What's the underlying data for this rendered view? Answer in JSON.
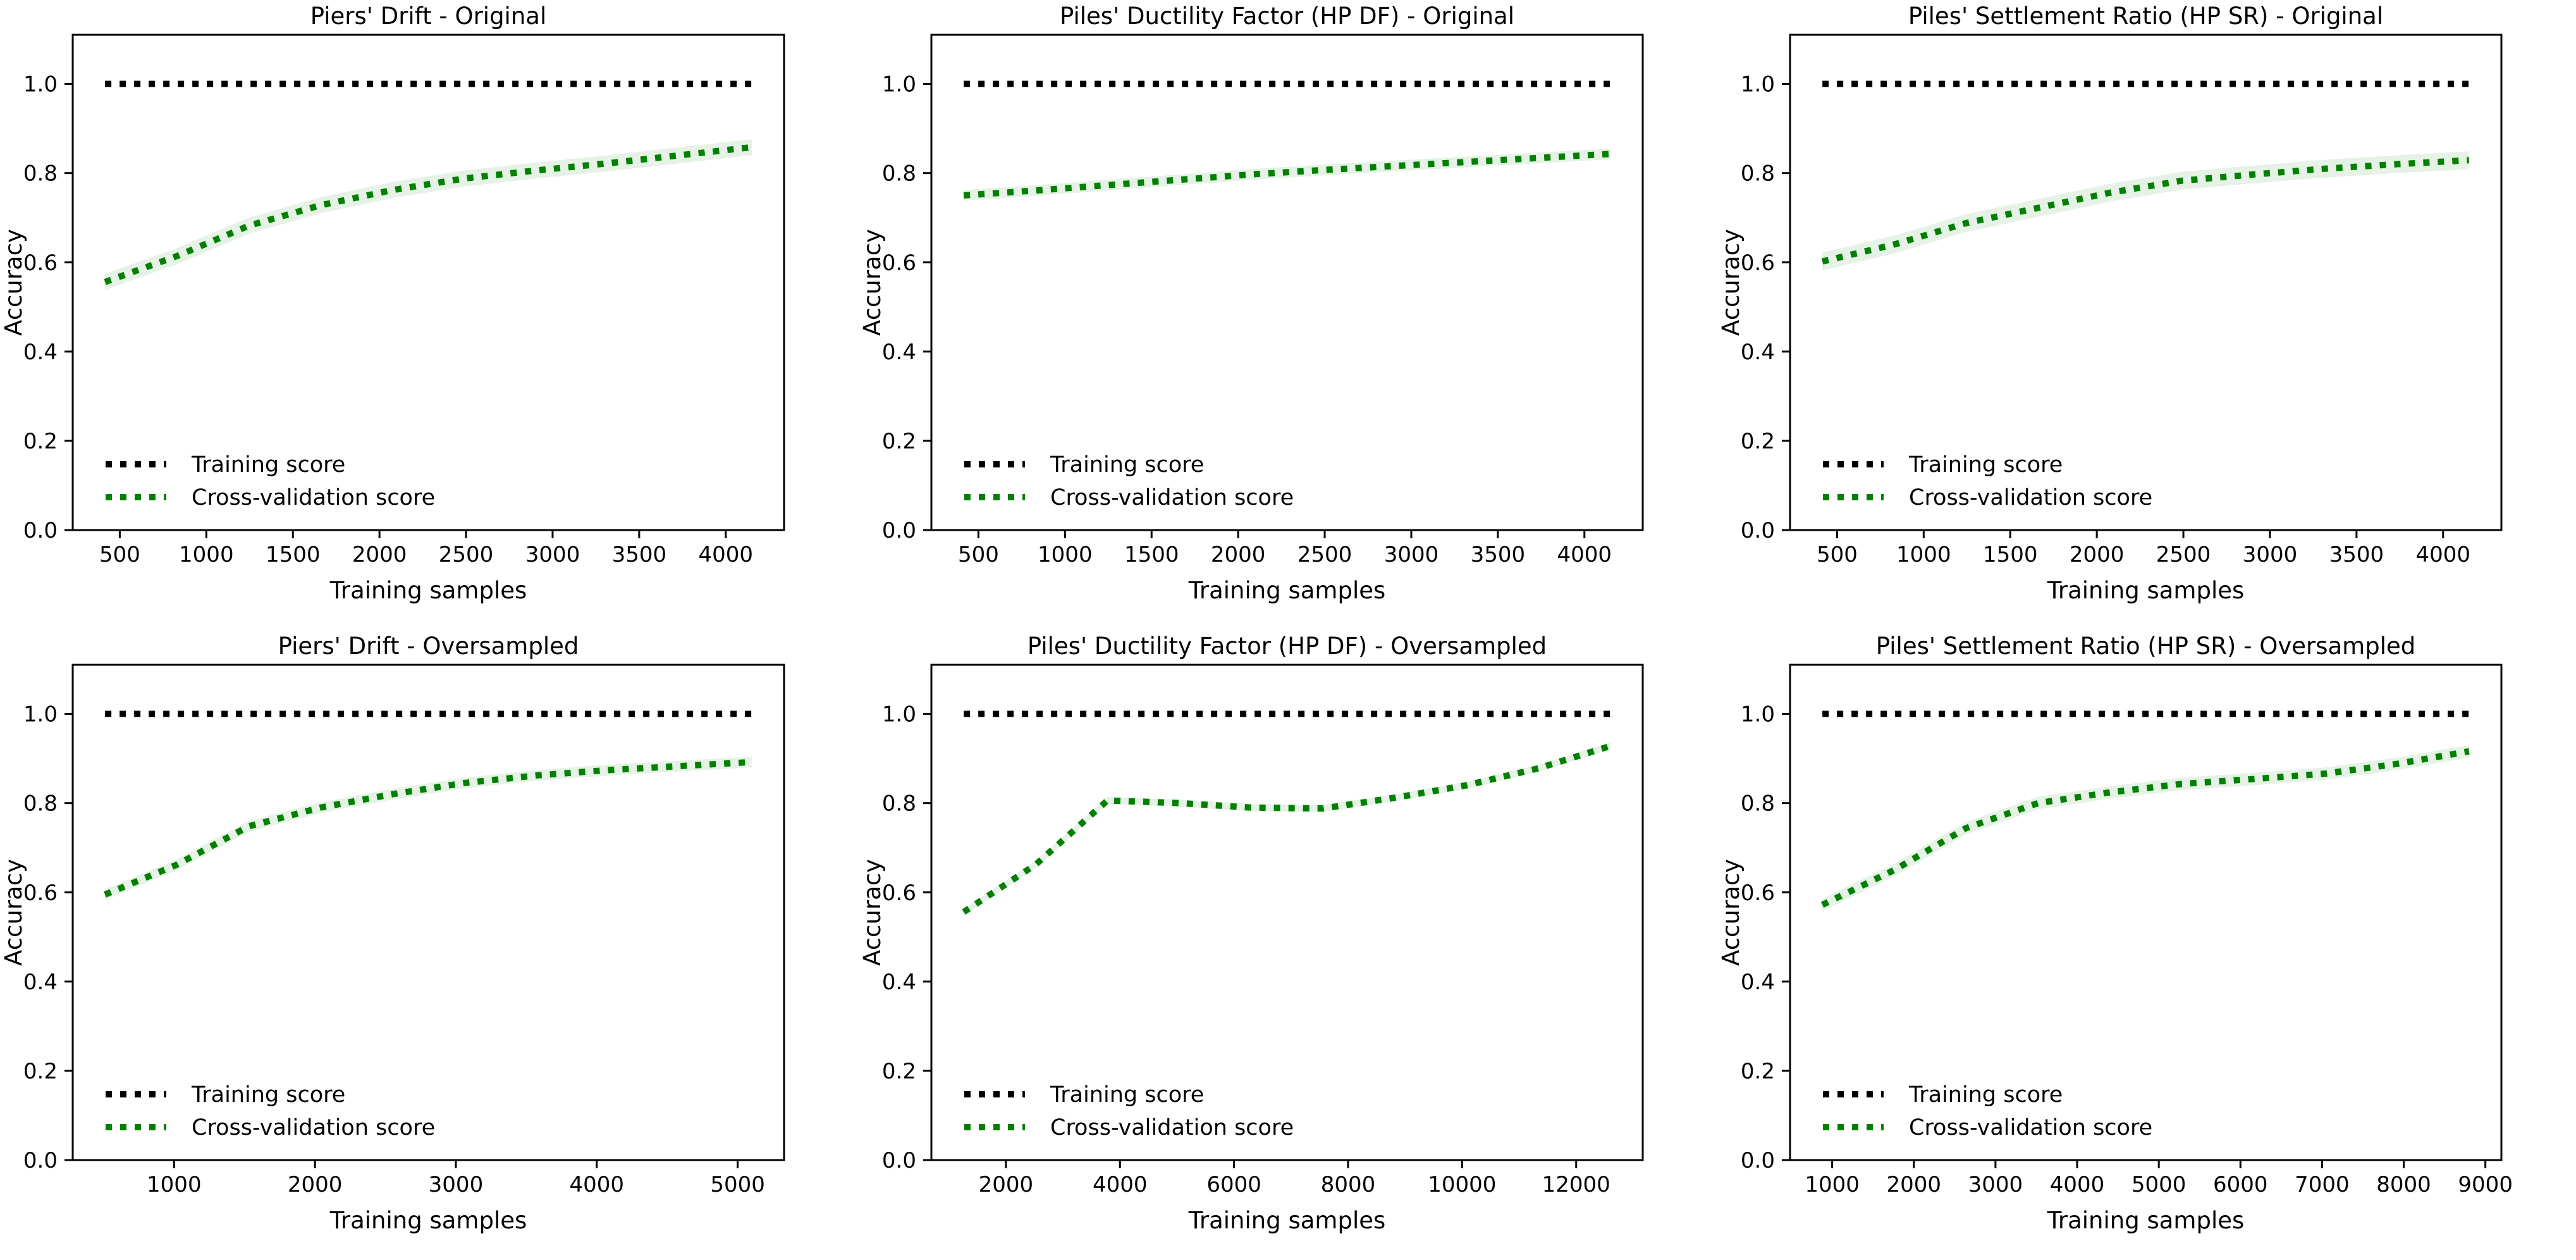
{
  "page": {
    "background": "#ffffff"
  },
  "chart_data": [
    {
      "id": "piers-drift-original",
      "type": "line",
      "title": "Piers' Drift - Original",
      "xlabel": "Training samples",
      "ylabel": "Accuracy",
      "ylim": [
        0,
        1.11
      ],
      "grid": false,
      "legend_position": "lower-left",
      "yticks": [
        "0.0",
        "0.2",
        "0.4",
        "0.6",
        "0.8",
        "1.0"
      ],
      "xticks": [
        "500",
        "1000",
        "1500",
        "2000",
        "2500",
        "3000",
        "3500",
        "4000"
      ],
      "series": [
        {
          "name": "Training score",
          "color": "#000000",
          "style": "dotted",
          "band": 0,
          "x": [
            415,
            830,
            1245,
            1660,
            2075,
            2490,
            2905,
            3320,
            3735,
            4150
          ],
          "y": [
            1.0,
            1.0,
            1.0,
            1.0,
            1.0,
            1.0,
            1.0,
            1.0,
            1.0,
            1.0
          ]
        },
        {
          "name": "Cross-validation score",
          "color": "#008000",
          "style": "dotted",
          "band": 0.018,
          "x": [
            415,
            830,
            1245,
            1660,
            2075,
            2490,
            2905,
            3320,
            3735,
            4150
          ],
          "y": [
            0.556,
            0.614,
            0.682,
            0.728,
            0.762,
            0.788,
            0.806,
            0.822,
            0.84,
            0.858
          ]
        }
      ]
    },
    {
      "id": "piles-ductility-factor-original",
      "type": "line",
      "title": "Piles' Ductility Factor (HP DF) - Original",
      "xlabel": "Training samples",
      "ylabel": "Accuracy",
      "ylim": [
        0,
        1.11
      ],
      "grid": false,
      "legend_position": "lower-left",
      "yticks": [
        "0.0",
        "0.2",
        "0.4",
        "0.6",
        "0.8",
        "1.0"
      ],
      "xticks": [
        "500",
        "1000",
        "1500",
        "2000",
        "2500",
        "3000",
        "3500",
        "4000"
      ],
      "series": [
        {
          "name": "Training score",
          "color": "#000000",
          "style": "dotted",
          "band": 0,
          "x": [
            415,
            830,
            1245,
            1660,
            2075,
            2490,
            2905,
            3320,
            3735,
            4150
          ],
          "y": [
            1.0,
            1.0,
            1.0,
            1.0,
            1.0,
            1.0,
            1.0,
            1.0,
            1.0,
            1.0
          ]
        },
        {
          "name": "Cross-validation score",
          "color": "#008000",
          "style": "dotted",
          "band": 0.012,
          "x": [
            415,
            830,
            1245,
            1660,
            2075,
            2490,
            2905,
            3320,
            3735,
            4150
          ],
          "y": [
            0.75,
            0.761,
            0.773,
            0.785,
            0.797,
            0.807,
            0.816,
            0.825,
            0.834,
            0.843
          ]
        }
      ]
    },
    {
      "id": "piles-settlement-ratio-original",
      "type": "line",
      "title": "Piles' Settlement Ratio (HP SR) - Original",
      "xlabel": "Training samples",
      "ylabel": "Accuracy",
      "ylim": [
        0,
        1.11
      ],
      "grid": false,
      "legend_position": "lower-left",
      "yticks": [
        "0.0",
        "0.2",
        "0.4",
        "0.6",
        "0.8",
        "1.0"
      ],
      "xticks": [
        "500",
        "1000",
        "1500",
        "2000",
        "2500",
        "3000",
        "3500",
        "4000"
      ],
      "series": [
        {
          "name": "Training score",
          "color": "#000000",
          "style": "dotted",
          "band": 0,
          "x": [
            415,
            830,
            1245,
            1660,
            2075,
            2490,
            2905,
            3320,
            3735,
            4150
          ],
          "y": [
            1.0,
            1.0,
            1.0,
            1.0,
            1.0,
            1.0,
            1.0,
            1.0,
            1.0,
            1.0
          ]
        },
        {
          "name": "Cross-validation score",
          "color": "#008000",
          "style": "dotted",
          "band": 0.02,
          "x": [
            415,
            830,
            1245,
            1660,
            2075,
            2490,
            2905,
            3320,
            3735,
            4150
          ],
          "y": [
            0.602,
            0.64,
            0.688,
            0.722,
            0.756,
            0.783,
            0.797,
            0.81,
            0.82,
            0.829
          ]
        }
      ]
    },
    {
      "id": "piers-drift-oversampled",
      "type": "line",
      "title": "Piers' Drift - Oversampled",
      "xlabel": "Training samples",
      "ylabel": "Accuracy",
      "ylim": [
        0,
        1.11
      ],
      "grid": false,
      "legend_position": "lower-left",
      "yticks": [
        "0.0",
        "0.2",
        "0.4",
        "0.6",
        "0.8",
        "1.0"
      ],
      "xticks": [
        "1000",
        "2000",
        "3000",
        "4000",
        "5000"
      ],
      "series": [
        {
          "name": "Training score",
          "color": "#000000",
          "style": "dotted",
          "band": 0,
          "x": [
            510,
            1020,
            1530,
            2040,
            2550,
            3060,
            3570,
            4080,
            4590,
            5100
          ],
          "y": [
            1.0,
            1.0,
            1.0,
            1.0,
            1.0,
            1.0,
            1.0,
            1.0,
            1.0,
            1.0
          ]
        },
        {
          "name": "Cross-validation score",
          "color": "#008000",
          "style": "dotted",
          "band": 0.012,
          "x": [
            510,
            1020,
            1530,
            2040,
            2550,
            3060,
            3570,
            4080,
            4590,
            5100
          ],
          "y": [
            0.595,
            0.662,
            0.748,
            0.79,
            0.82,
            0.845,
            0.862,
            0.874,
            0.883,
            0.892
          ]
        }
      ]
    },
    {
      "id": "piles-ductility-factor-oversampled",
      "type": "line",
      "title": "Piles' Ductility Factor (HP DF) - Oversampled",
      "xlabel": "Training samples",
      "ylabel": "Accuracy",
      "ylim": [
        0,
        1.11
      ],
      "grid": false,
      "legend_position": "lower-left",
      "yticks": [
        "0.0",
        "0.2",
        "0.4",
        "0.6",
        "0.8",
        "1.0"
      ],
      "xticks": [
        "2000",
        "4000",
        "6000",
        "8000",
        "10000",
        "12000"
      ],
      "series": [
        {
          "name": "Training score",
          "color": "#000000",
          "style": "dotted",
          "band": 0,
          "x": [
            1260,
            2520,
            3780,
            5040,
            6300,
            7560,
            8820,
            10080,
            11340,
            12600
          ],
          "y": [
            1.0,
            1.0,
            1.0,
            1.0,
            1.0,
            1.0,
            1.0,
            1.0,
            1.0,
            1.0
          ]
        },
        {
          "name": "Cross-validation score",
          "color": "#008000",
          "style": "dotted",
          "band": 0.008,
          "x": [
            1260,
            2520,
            3780,
            5040,
            6300,
            7560,
            8820,
            10080,
            11340,
            12600
          ],
          "y": [
            0.556,
            0.662,
            0.806,
            0.8,
            0.79,
            0.788,
            0.812,
            0.84,
            0.878,
            0.928
          ]
        }
      ]
    },
    {
      "id": "piles-settlement-ratio-oversampled",
      "type": "line",
      "title": "Piles' Settlement Ratio (HP SR) - Oversampled",
      "xlabel": "Training samples",
      "ylabel": "Accuracy",
      "ylim": [
        0,
        1.11
      ],
      "grid": false,
      "legend_position": "lower-left",
      "yticks": [
        "0.0",
        "0.2",
        "0.4",
        "0.6",
        "0.8",
        "1.0"
      ],
      "xticks": [
        "1000",
        "2000",
        "3000",
        "4000",
        "5000",
        "6000",
        "7000",
        "8000",
        "9000"
      ],
      "series": [
        {
          "name": "Training score",
          "color": "#000000",
          "style": "dotted",
          "band": 0,
          "x": [
            880,
            1760,
            2640,
            3520,
            4400,
            5280,
            6160,
            7040,
            7920,
            8800
          ],
          "y": [
            1.0,
            1.0,
            1.0,
            1.0,
            1.0,
            1.0,
            1.0,
            1.0,
            1.0,
            1.0
          ]
        },
        {
          "name": "Cross-validation score",
          "color": "#008000",
          "style": "dotted",
          "band": 0.014,
          "x": [
            880,
            1760,
            2640,
            3520,
            4400,
            5280,
            6160,
            7040,
            7920,
            8800
          ],
          "y": [
            0.572,
            0.65,
            0.744,
            0.8,
            0.824,
            0.843,
            0.854,
            0.866,
            0.888,
            0.916
          ]
        }
      ]
    }
  ]
}
